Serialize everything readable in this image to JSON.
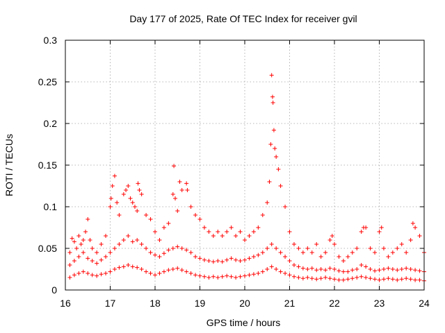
{
  "chart_data": {
    "type": "scatter",
    "title": "Day 177 of 2025, Rate Of TEC Index for receiver gvil",
    "xlabel": "GPS time / hours",
    "ylabel": "ROTI / TECUs",
    "xlim": [
      16,
      24
    ],
    "ylim": [
      0,
      0.3
    ],
    "x_ticks": [
      "16",
      "17",
      "18",
      "19",
      "20",
      "21",
      "22",
      "23",
      "24"
    ],
    "y_ticks": [
      "0",
      "0.05",
      "0.1",
      "0.15",
      "0.2",
      "0.25",
      "0.3"
    ],
    "grid": true,
    "marker": "+",
    "color": "#ff0000",
    "series": [
      {
        "name": "ROTI",
        "x": [
          16.1,
          16.15,
          16.2,
          16.25,
          16.3,
          16.35,
          16.4,
          16.45,
          16.5,
          16.55,
          16.6,
          16.7,
          16.8,
          16.9,
          17.0,
          17.02,
          17.05,
          17.1,
          17.15,
          17.2,
          17.3,
          17.35,
          17.4,
          17.45,
          17.5,
          17.55,
          17.6,
          17.62,
          17.65,
          17.7,
          17.8,
          17.9,
          18.0,
          18.1,
          18.2,
          18.3,
          18.4,
          18.42,
          18.45,
          18.5,
          18.55,
          18.6,
          18.7,
          18.72,
          18.8,
          18.9,
          19.0,
          19.1,
          19.2,
          19.3,
          19.4,
          19.5,
          19.6,
          19.7,
          19.8,
          19.9,
          20.0,
          20.1,
          20.2,
          20.3,
          20.4,
          20.5,
          20.55,
          20.58,
          20.6,
          20.62,
          20.63,
          20.65,
          20.67,
          20.7,
          20.75,
          20.8,
          20.9,
          21.0,
          21.1,
          21.2,
          21.3,
          21.4,
          21.5,
          21.6,
          21.7,
          21.8,
          21.9,
          21.95,
          22.0,
          22.1,
          22.2,
          22.3,
          22.4,
          22.5,
          22.6,
          22.65,
          22.7,
          22.8,
          22.9,
          23.0,
          23.05,
          23.1,
          23.2,
          23.3,
          23.4,
          23.5,
          23.6,
          23.7,
          23.75,
          23.8,
          23.9,
          24.0
        ],
        "y": [
          0.045,
          0.062,
          0.058,
          0.05,
          0.065,
          0.055,
          0.06,
          0.07,
          0.085,
          0.06,
          0.05,
          0.045,
          0.055,
          0.065,
          0.1,
          0.11,
          0.125,
          0.137,
          0.105,
          0.09,
          0.115,
          0.12,
          0.125,
          0.11,
          0.105,
          0.1,
          0.095,
          0.128,
          0.12,
          0.115,
          0.09,
          0.085,
          0.07,
          0.06,
          0.075,
          0.08,
          0.115,
          0.149,
          0.11,
          0.095,
          0.13,
          0.12,
          0.128,
          0.12,
          0.1,
          0.09,
          0.085,
          0.075,
          0.07,
          0.065,
          0.07,
          0.065,
          0.07,
          0.075,
          0.065,
          0.07,
          0.06,
          0.065,
          0.07,
          0.075,
          0.09,
          0.105,
          0.13,
          0.175,
          0.258,
          0.232,
          0.225,
          0.192,
          0.17,
          0.16,
          0.145,
          0.125,
          0.1,
          0.07,
          0.055,
          0.05,
          0.045,
          0.05,
          0.045,
          0.055,
          0.04,
          0.045,
          0.06,
          0.065,
          0.055,
          0.04,
          0.035,
          0.04,
          0.045,
          0.05,
          0.07,
          0.075,
          0.075,
          0.05,
          0.045,
          0.07,
          0.075,
          0.05,
          0.04,
          0.045,
          0.05,
          0.055,
          0.045,
          0.06,
          0.08,
          0.075,
          0.065,
          0.045
        ]
      },
      {
        "name": "ROTI",
        "x": [
          16.1,
          16.2,
          16.3,
          16.4,
          16.5,
          16.6,
          16.7,
          16.8,
          16.9,
          17.0,
          17.1,
          17.2,
          17.3,
          17.4,
          17.5,
          17.6,
          17.7,
          17.8,
          17.9,
          18.0,
          18.1,
          18.2,
          18.3,
          18.4,
          18.5,
          18.6,
          18.7,
          18.8,
          18.9,
          19.0,
          19.1,
          19.2,
          19.3,
          19.4,
          19.5,
          19.6,
          19.7,
          19.8,
          19.9,
          20.0,
          20.1,
          20.2,
          20.3,
          20.4,
          20.5,
          20.6,
          20.7,
          20.8,
          20.9,
          21.0,
          21.1,
          21.2,
          21.3,
          21.4,
          21.5,
          21.6,
          21.7,
          21.8,
          21.9,
          22.0,
          22.1,
          22.2,
          22.3,
          22.4,
          22.5,
          22.6,
          22.7,
          22.8,
          22.9,
          23.0,
          23.1,
          23.2,
          23.3,
          23.4,
          23.5,
          23.6,
          23.7,
          23.8,
          23.9,
          24.0
        ],
        "y": [
          0.03,
          0.035,
          0.04,
          0.045,
          0.038,
          0.035,
          0.032,
          0.036,
          0.04,
          0.045,
          0.05,
          0.055,
          0.06,
          0.065,
          0.058,
          0.06,
          0.055,
          0.05,
          0.045,
          0.042,
          0.04,
          0.044,
          0.048,
          0.05,
          0.052,
          0.05,
          0.048,
          0.045,
          0.04,
          0.038,
          0.036,
          0.035,
          0.034,
          0.035,
          0.034,
          0.036,
          0.038,
          0.036,
          0.035,
          0.036,
          0.038,
          0.04,
          0.042,
          0.045,
          0.05,
          0.055,
          0.05,
          0.045,
          0.04,
          0.035,
          0.03,
          0.028,
          0.026,
          0.025,
          0.026,
          0.024,
          0.025,
          0.024,
          0.026,
          0.025,
          0.023,
          0.022,
          0.022,
          0.024,
          0.025,
          0.03,
          0.028,
          0.025,
          0.023,
          0.024,
          0.025,
          0.026,
          0.025,
          0.024,
          0.025,
          0.026,
          0.025,
          0.024,
          0.023,
          0.022
        ]
      },
      {
        "name": "ROTI",
        "x": [
          16.1,
          16.2,
          16.3,
          16.4,
          16.5,
          16.6,
          16.7,
          16.8,
          16.9,
          17.0,
          17.1,
          17.2,
          17.3,
          17.4,
          17.5,
          17.6,
          17.7,
          17.8,
          17.9,
          18.0,
          18.1,
          18.2,
          18.3,
          18.4,
          18.5,
          18.6,
          18.7,
          18.8,
          18.9,
          19.0,
          19.1,
          19.2,
          19.3,
          19.4,
          19.5,
          19.6,
          19.7,
          19.8,
          19.9,
          20.0,
          20.1,
          20.2,
          20.3,
          20.4,
          20.5,
          20.6,
          20.7,
          20.8,
          20.9,
          21.0,
          21.1,
          21.2,
          21.3,
          21.4,
          21.5,
          21.6,
          21.7,
          21.8,
          21.9,
          22.0,
          22.1,
          22.2,
          22.3,
          22.4,
          22.5,
          22.6,
          22.7,
          22.8,
          22.9,
          23.0,
          23.1,
          23.2,
          23.3,
          23.4,
          23.5,
          23.6,
          23.7,
          23.8,
          23.9,
          24.0
        ],
        "y": [
          0.015,
          0.018,
          0.02,
          0.022,
          0.02,
          0.018,
          0.017,
          0.019,
          0.02,
          0.022,
          0.025,
          0.027,
          0.028,
          0.03,
          0.028,
          0.027,
          0.025,
          0.022,
          0.02,
          0.018,
          0.02,
          0.022,
          0.024,
          0.025,
          0.026,
          0.024,
          0.022,
          0.02,
          0.018,
          0.017,
          0.016,
          0.015,
          0.016,
          0.015,
          0.016,
          0.017,
          0.016,
          0.015,
          0.016,
          0.017,
          0.018,
          0.019,
          0.02,
          0.022,
          0.025,
          0.028,
          0.025,
          0.022,
          0.02,
          0.018,
          0.016,
          0.015,
          0.014,
          0.015,
          0.014,
          0.013,
          0.014,
          0.015,
          0.014,
          0.013,
          0.012,
          0.012,
          0.013,
          0.014,
          0.015,
          0.016,
          0.015,
          0.014,
          0.013,
          0.012,
          0.013,
          0.014,
          0.013,
          0.012,
          0.013,
          0.014,
          0.013,
          0.012,
          0.012,
          0.011
        ]
      }
    ]
  }
}
